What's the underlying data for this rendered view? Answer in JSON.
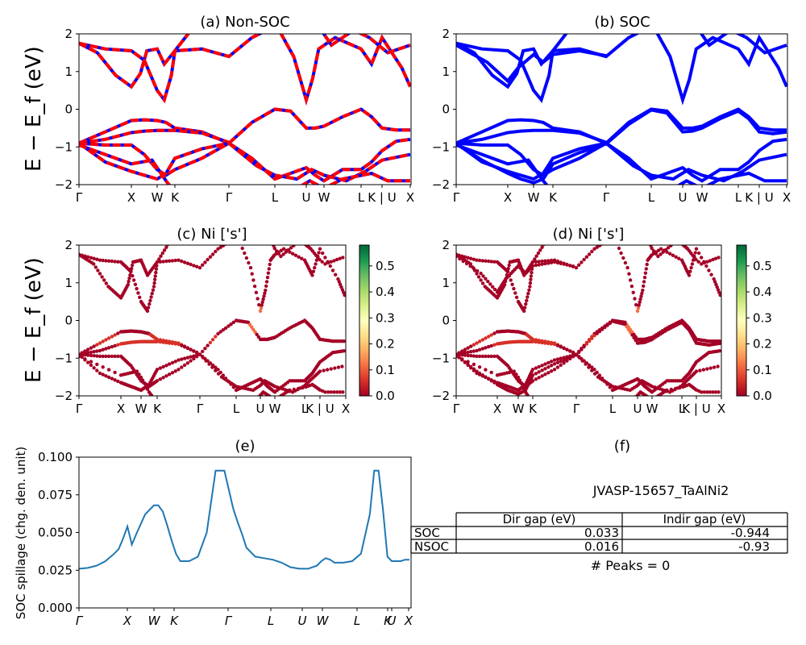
{
  "chart_data": [
    {
      "id": "a",
      "type": "line",
      "title": "(a) Non-SOC",
      "ylabel": "E − E_f (eV)",
      "ylim": [
        -2,
        2
      ],
      "yticks": [
        -2,
        -1,
        0,
        1,
        2
      ],
      "kpath": [
        "Γ",
        "X",
        "W",
        "K",
        "Γ",
        "L",
        "U",
        "W",
        "L",
        "K | U",
        "X"
      ],
      "series": [
        {
          "name": "up",
          "color": "#0000ff",
          "style": "solid"
        },
        {
          "name": "down",
          "color": "#ff0000",
          "style": "dashed"
        }
      ]
    },
    {
      "id": "b",
      "type": "line",
      "title": "(b) SOC",
      "ylim": [
        -2,
        2
      ],
      "yticks": [
        -2,
        -1,
        0,
        1,
        2
      ],
      "kpath": [
        "Γ",
        "X",
        "W",
        "K",
        "Γ",
        "L",
        "U",
        "W",
        "L",
        "K | U",
        "X"
      ],
      "series": [
        {
          "name": "soc",
          "color": "#0000ff",
          "style": "solid"
        }
      ]
    },
    {
      "id": "c",
      "type": "scatter",
      "title": "(c)  Ni ['s']",
      "ylabel": "E − E_f (eV)",
      "ylim": [
        -2,
        2
      ],
      "yticks": [
        -2,
        -1,
        0,
        1,
        2
      ],
      "kpath": [
        "Γ",
        "X",
        "W",
        "K",
        "Γ",
        "L",
        "U",
        "W",
        "L",
        "K | U",
        "X"
      ],
      "colorbar": {
        "min": 0.0,
        "max": 0.58,
        "ticks": [
          "0.0",
          "0.1",
          "0.2",
          "0.3",
          "0.4",
          "0.5"
        ],
        "cmap": "RdYlGn"
      }
    },
    {
      "id": "d",
      "type": "scatter",
      "title": "(d) Ni ['s']",
      "ylim": [
        -2,
        2
      ],
      "yticks": [
        -2,
        -1,
        0,
        1,
        2
      ],
      "kpath": [
        "Γ",
        "X",
        "W",
        "K",
        "Γ",
        "L",
        "U",
        "W",
        "L",
        "K | U",
        "X"
      ],
      "colorbar": {
        "min": 0.0,
        "max": 0.58,
        "ticks": [
          "0.0",
          "0.1",
          "0.2",
          "0.3",
          "0.4",
          "0.5"
        ],
        "cmap": "RdYlGn"
      }
    },
    {
      "id": "e",
      "type": "line",
      "title": "(e)",
      "ylabel": "SOC spillage (chg. den. unit)",
      "ylim": [
        0,
        0.1
      ],
      "yticks": [
        "0.000",
        "0.025",
        "0.050",
        "0.075",
        "0.100"
      ],
      "kpath": [
        "Γ",
        "X",
        "W",
        "K",
        "Γ",
        "L",
        "U",
        "W",
        "L",
        "K",
        "U",
        "X"
      ],
      "x": [
        0,
        2,
        4,
        6,
        8,
        9,
        10,
        11,
        12,
        13,
        15,
        17,
        18,
        19,
        20,
        21,
        22,
        23,
        25,
        27,
        29,
        31,
        33,
        35,
        36,
        37,
        38,
        40,
        42,
        44,
        46,
        48,
        50,
        52,
        54,
        55,
        56,
        57,
        58,
        60,
        62,
        64,
        66,
        67,
        68,
        69,
        70,
        71,
        72,
        73,
        74,
        75
      ],
      "values": [
        0.026,
        0.0265,
        0.028,
        0.031,
        0.036,
        0.039,
        0.046,
        0.054,
        0.042,
        0.049,
        0.062,
        0.068,
        0.068,
        0.064,
        0.055,
        0.045,
        0.036,
        0.031,
        0.031,
        0.034,
        0.05,
        0.091,
        0.091,
        0.066,
        0.057,
        0.049,
        0.04,
        0.034,
        0.033,
        0.032,
        0.03,
        0.027,
        0.026,
        0.026,
        0.028,
        0.031,
        0.033,
        0.032,
        0.03,
        0.03,
        0.031,
        0.036,
        0.062,
        0.091,
        0.091,
        0.065,
        0.034,
        0.031,
        0.031,
        0.031,
        0.032,
        0.032
      ],
      "color": "#1f77b4"
    },
    {
      "id": "f",
      "type": "table",
      "title": "(f)",
      "material": "JVASP-15657_TaAlNi2",
      "columns": [
        "Dir gap (eV)",
        "Indir gap (eV)"
      ],
      "rows": [
        {
          "label": "SOC",
          "dir": "0.033",
          "indir": "-0.944"
        },
        {
          "label": "NSOC",
          "dir": "0.016",
          "indir": "-0.93"
        }
      ],
      "peaks": "# Peaks = 0"
    }
  ]
}
